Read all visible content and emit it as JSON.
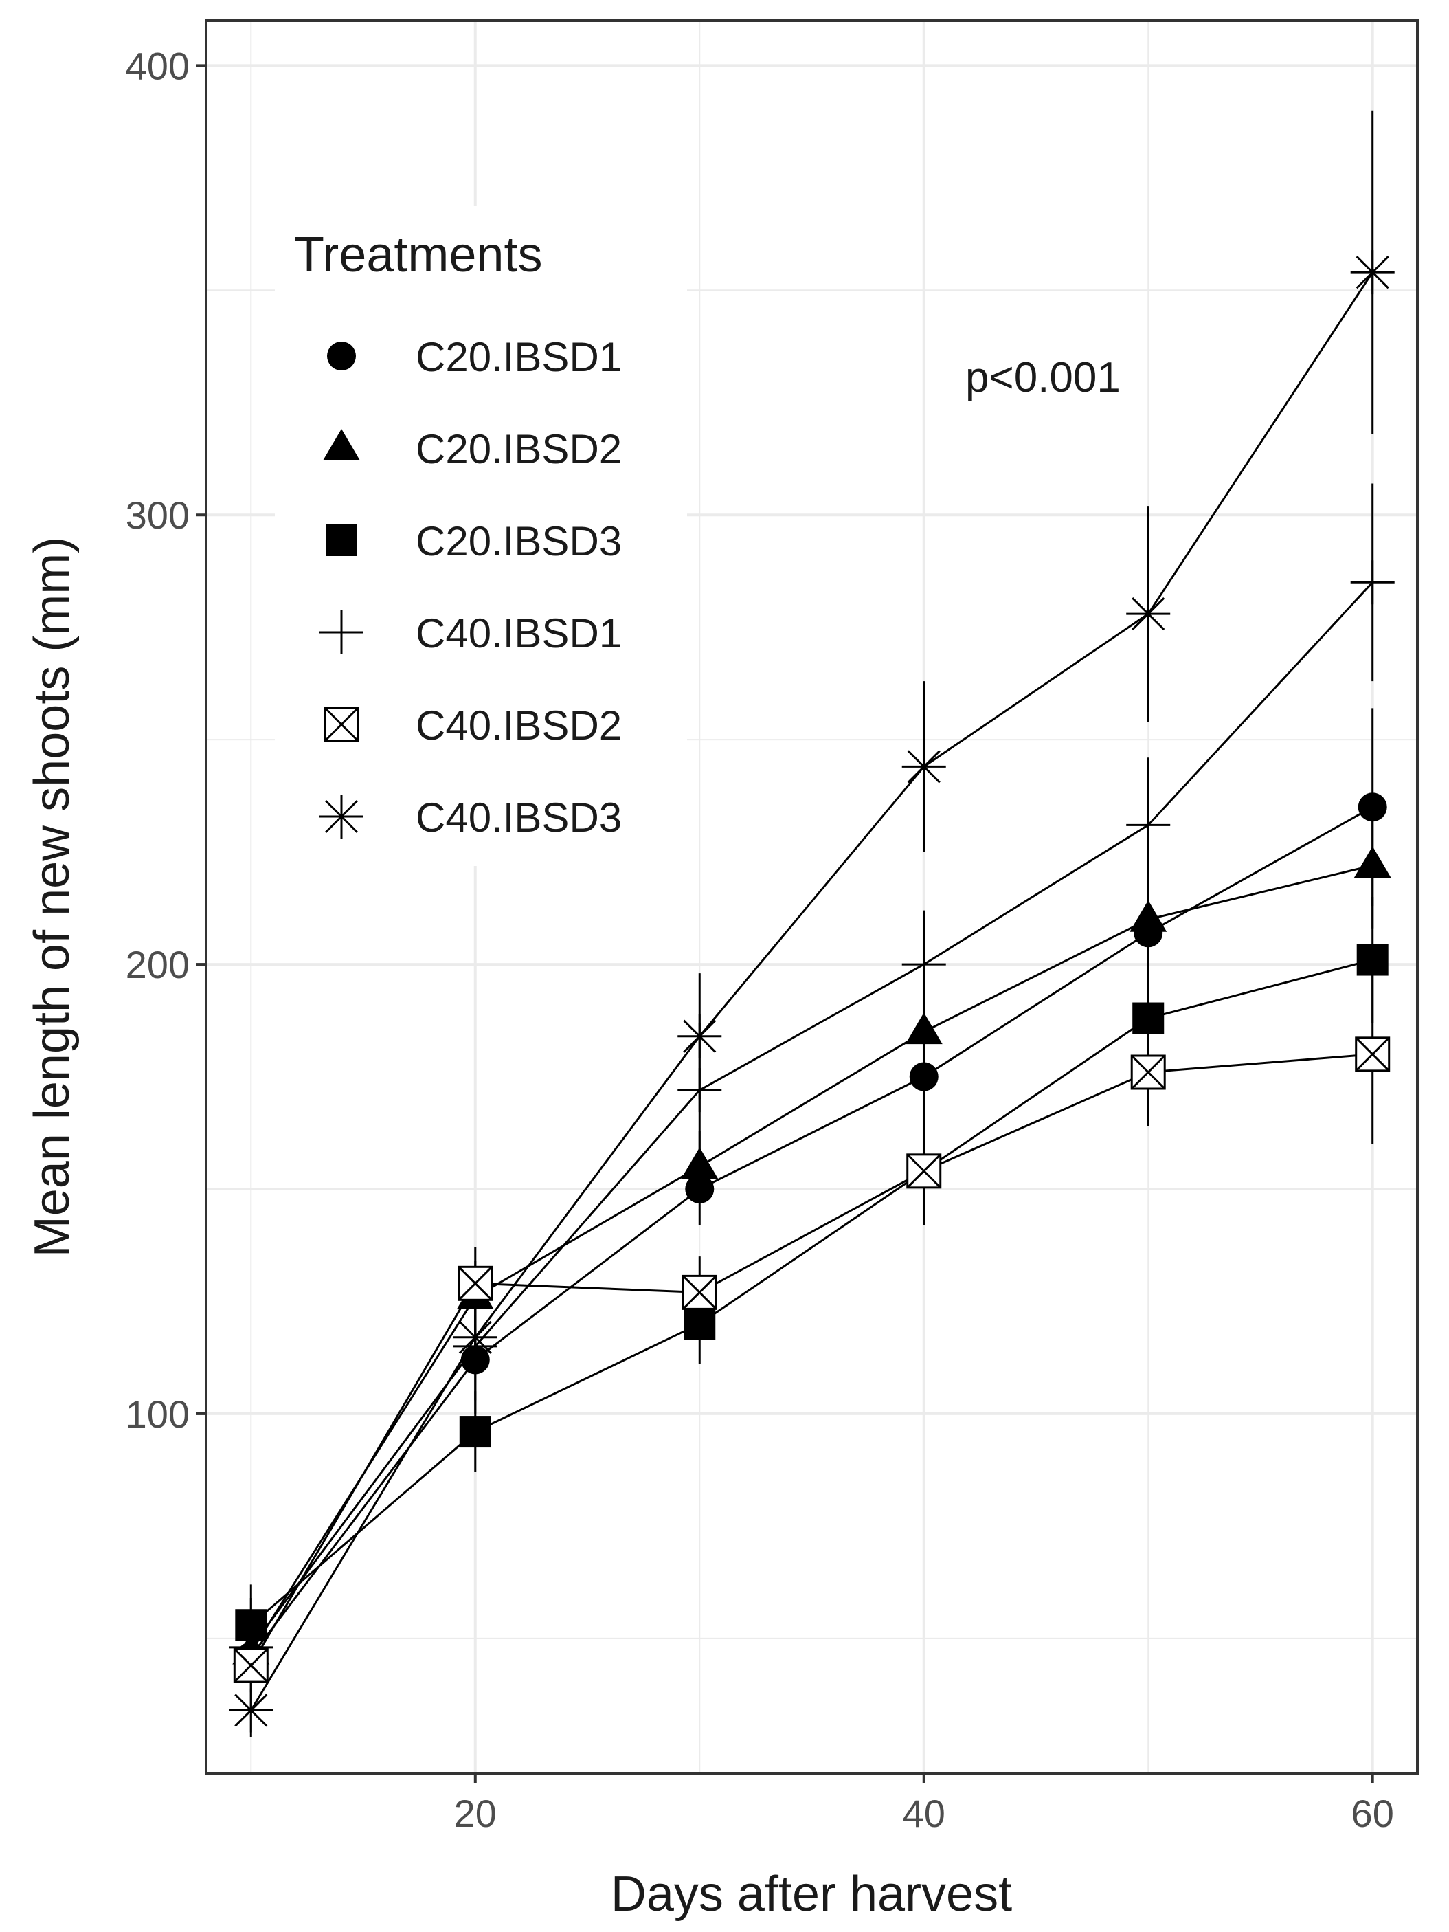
{
  "chart_data": {
    "type": "line",
    "title": "",
    "xlabel": "Days after harvest",
    "ylabel": "Mean length of new shoots (mm)",
    "xlim": [
      8,
      62
    ],
    "ylim": [
      20,
      410
    ],
    "x_ticks": [
      20,
      40,
      60
    ],
    "y_ticks": [
      100,
      200,
      300,
      400
    ],
    "x_tick_labels": [
      "20",
      "40",
      "60"
    ],
    "y_tick_labels": [
      "100",
      "200",
      "300",
      "400"
    ],
    "x_minor_gridlines": [
      10,
      30,
      50
    ],
    "y_minor_gridlines": [
      50,
      150,
      250,
      350
    ],
    "grid": true,
    "legend_title": "Treatments",
    "legend_position": "top-left",
    "annotation": "p<0.001",
    "x": [
      10,
      20,
      30,
      40,
      50,
      60
    ],
    "series": [
      {
        "name": "C20.IBSD1",
        "marker": "circle",
        "values": [
          46,
          112,
          150,
          175,
          207,
          235
        ],
        "errors": [
          6,
          9,
          8,
          11,
          18,
          22
        ]
      },
      {
        "name": "C20.IBSD2",
        "marker": "triangle",
        "values": [
          47,
          126,
          155,
          185,
          210,
          222
        ],
        "errors": [
          6,
          8,
          8,
          10,
          12,
          14
        ]
      },
      {
        "name": "C20.IBSD3",
        "marker": "square",
        "values": [
          53,
          96,
          120,
          154,
          188,
          201
        ],
        "errors": [
          6,
          9,
          9,
          12,
          12,
          14
        ]
      },
      {
        "name": "C40.IBSD1",
        "marker": "plus",
        "values": [
          48,
          115,
          172,
          200,
          231,
          285
        ],
        "errors": [
          14,
          15,
          15,
          12,
          15,
          22
        ]
      },
      {
        "name": "C40.IBSD2",
        "marker": "boxed-x",
        "values": [
          44,
          129,
          127,
          154,
          176,
          180
        ],
        "errors": [
          6,
          8,
          8,
          10,
          12,
          20
        ]
      },
      {
        "name": "C40.IBSD3",
        "marker": "asterisk",
        "values": [
          34,
          117,
          184,
          244,
          278,
          354
        ],
        "errors": [
          6,
          8,
          14,
          19,
          24,
          36
        ]
      }
    ]
  }
}
